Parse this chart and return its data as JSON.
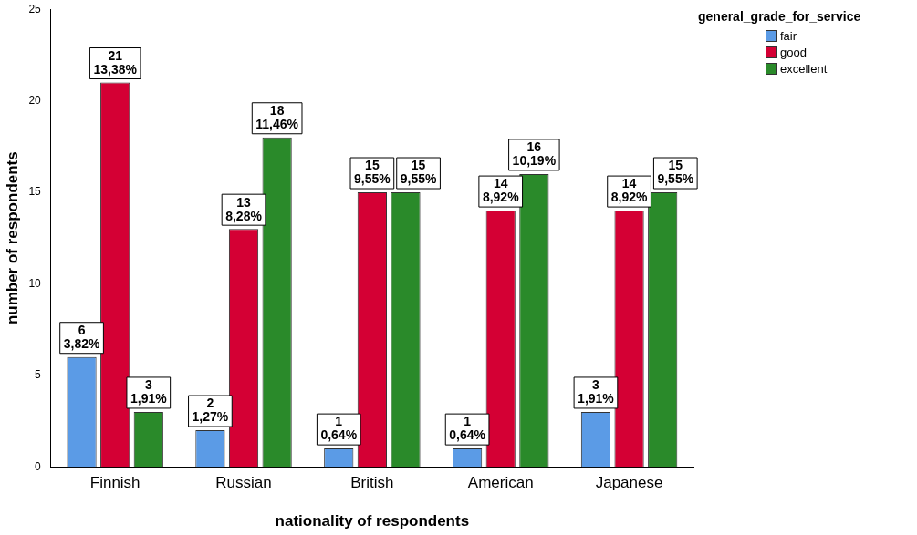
{
  "chart_data": {
    "type": "bar",
    "xlabel": "nationality of respondents",
    "ylabel": "number of respondents",
    "legend_title": "general_grade_for_service",
    "legend": "top right",
    "grid": false,
    "categories": [
      "Finnish",
      "Russian",
      "British",
      "American",
      "Japanese"
    ],
    "ylim": [
      0,
      25
    ],
    "yticks": [
      0,
      5,
      10,
      15,
      20,
      25
    ],
    "series": [
      {
        "name": "fair",
        "color": "#5b9be6",
        "values": [
          6,
          2,
          1,
          1,
          3
        ],
        "value_labels": [
          "6\n3,82%",
          "2\n1,27%",
          "1\n0,64%",
          "1\n0,64%",
          "3\n1,91%"
        ]
      },
      {
        "name": "good",
        "color": "#d40034",
        "values": [
          21,
          13,
          15,
          14,
          14
        ],
        "value_labels": [
          "21\n13,38%",
          "13\n8,28%",
          "15\n9,55%",
          "14\n8,92%",
          "14\n8,92%"
        ]
      },
      {
        "name": "excellent",
        "color": "#2a8a2a",
        "values": [
          3,
          18,
          15,
          16,
          15
        ],
        "value_labels": [
          "3\n1,91%",
          "18\n11,46%",
          "15\n9,55%",
          "16\n10,19%",
          "15\n9,55%"
        ]
      }
    ]
  }
}
